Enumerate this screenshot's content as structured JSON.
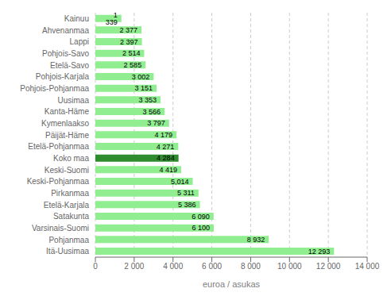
{
  "chart_data": {
    "type": "bar",
    "orientation": "horizontal",
    "xlabel": "euroa / asukas",
    "categories": [
      "Kainuu",
      "Ahvenanmaa",
      "Lappi",
      "Pohjois-Savo",
      "Etelä-Savo",
      "Pohjois-Karjala",
      "Pohjois-Pohjanmaa",
      "Uusimaa",
      "Kanta-Häme",
      "Kymenlaakso",
      "Päijät-Häme",
      "Etelä-Pohjanmaa",
      "Koko maa",
      "Keski-Suomi",
      "Keski-Pohjanmaa",
      "Pirkanmaa",
      "Etelä-Karjala",
      "Satakunta",
      "Varsinais-Suomi",
      "Pohjanmaa",
      "Itä-Uusimaa"
    ],
    "values": [
      1339,
      2377,
      2397,
      2514,
      2585,
      3002,
      3151,
      3353,
      3566,
      3797,
      4179,
      4271,
      4284,
      4419,
      5014,
      5311,
      5386,
      6090,
      6100,
      8932,
      12293
    ],
    "value_labels": [
      "1 339",
      "2 377",
      "2 397",
      "2 514",
      "2 585",
      "3 002",
      "3 151",
      "3 353",
      "3 566",
      "3 797",
      "4 179",
      "4 271",
      "4 284",
      "4 419",
      "5,014",
      "5 311",
      "5 386",
      "6 090",
      "6 100",
      "8 932",
      "12 293"
    ],
    "data_labels": true,
    "colors": [
      "#90EE90",
      "#90EE90",
      "#90EE90",
      "#90EE90",
      "#90EE90",
      "#90EE90",
      "#90EE90",
      "#90EE90",
      "#90EE90",
      "#90EE90",
      "#90EE90",
      "#90EE90",
      "#2E8B2E",
      "#90EE90",
      "#90EE90",
      "#90EE90",
      "#90EE90",
      "#90EE90",
      "#90EE90",
      "#90EE90",
      "#90EE90"
    ],
    "xlim": [
      0,
      14000
    ],
    "xticks": [
      0,
      {
        "value": 2000,
        "label": "2 000"
      },
      {
        "value": 4000,
        "label": "4 000"
      },
      {
        "value": 6000,
        "label": "6 000"
      },
      {
        "value": 8000,
        "label": "8 000"
      },
      {
        "value": 10000,
        "label": "10 000"
      },
      {
        "value": 12000,
        "label": "12 000"
      },
      {
        "value": 14000,
        "label": "14 000"
      }
    ],
    "grid": true
  }
}
